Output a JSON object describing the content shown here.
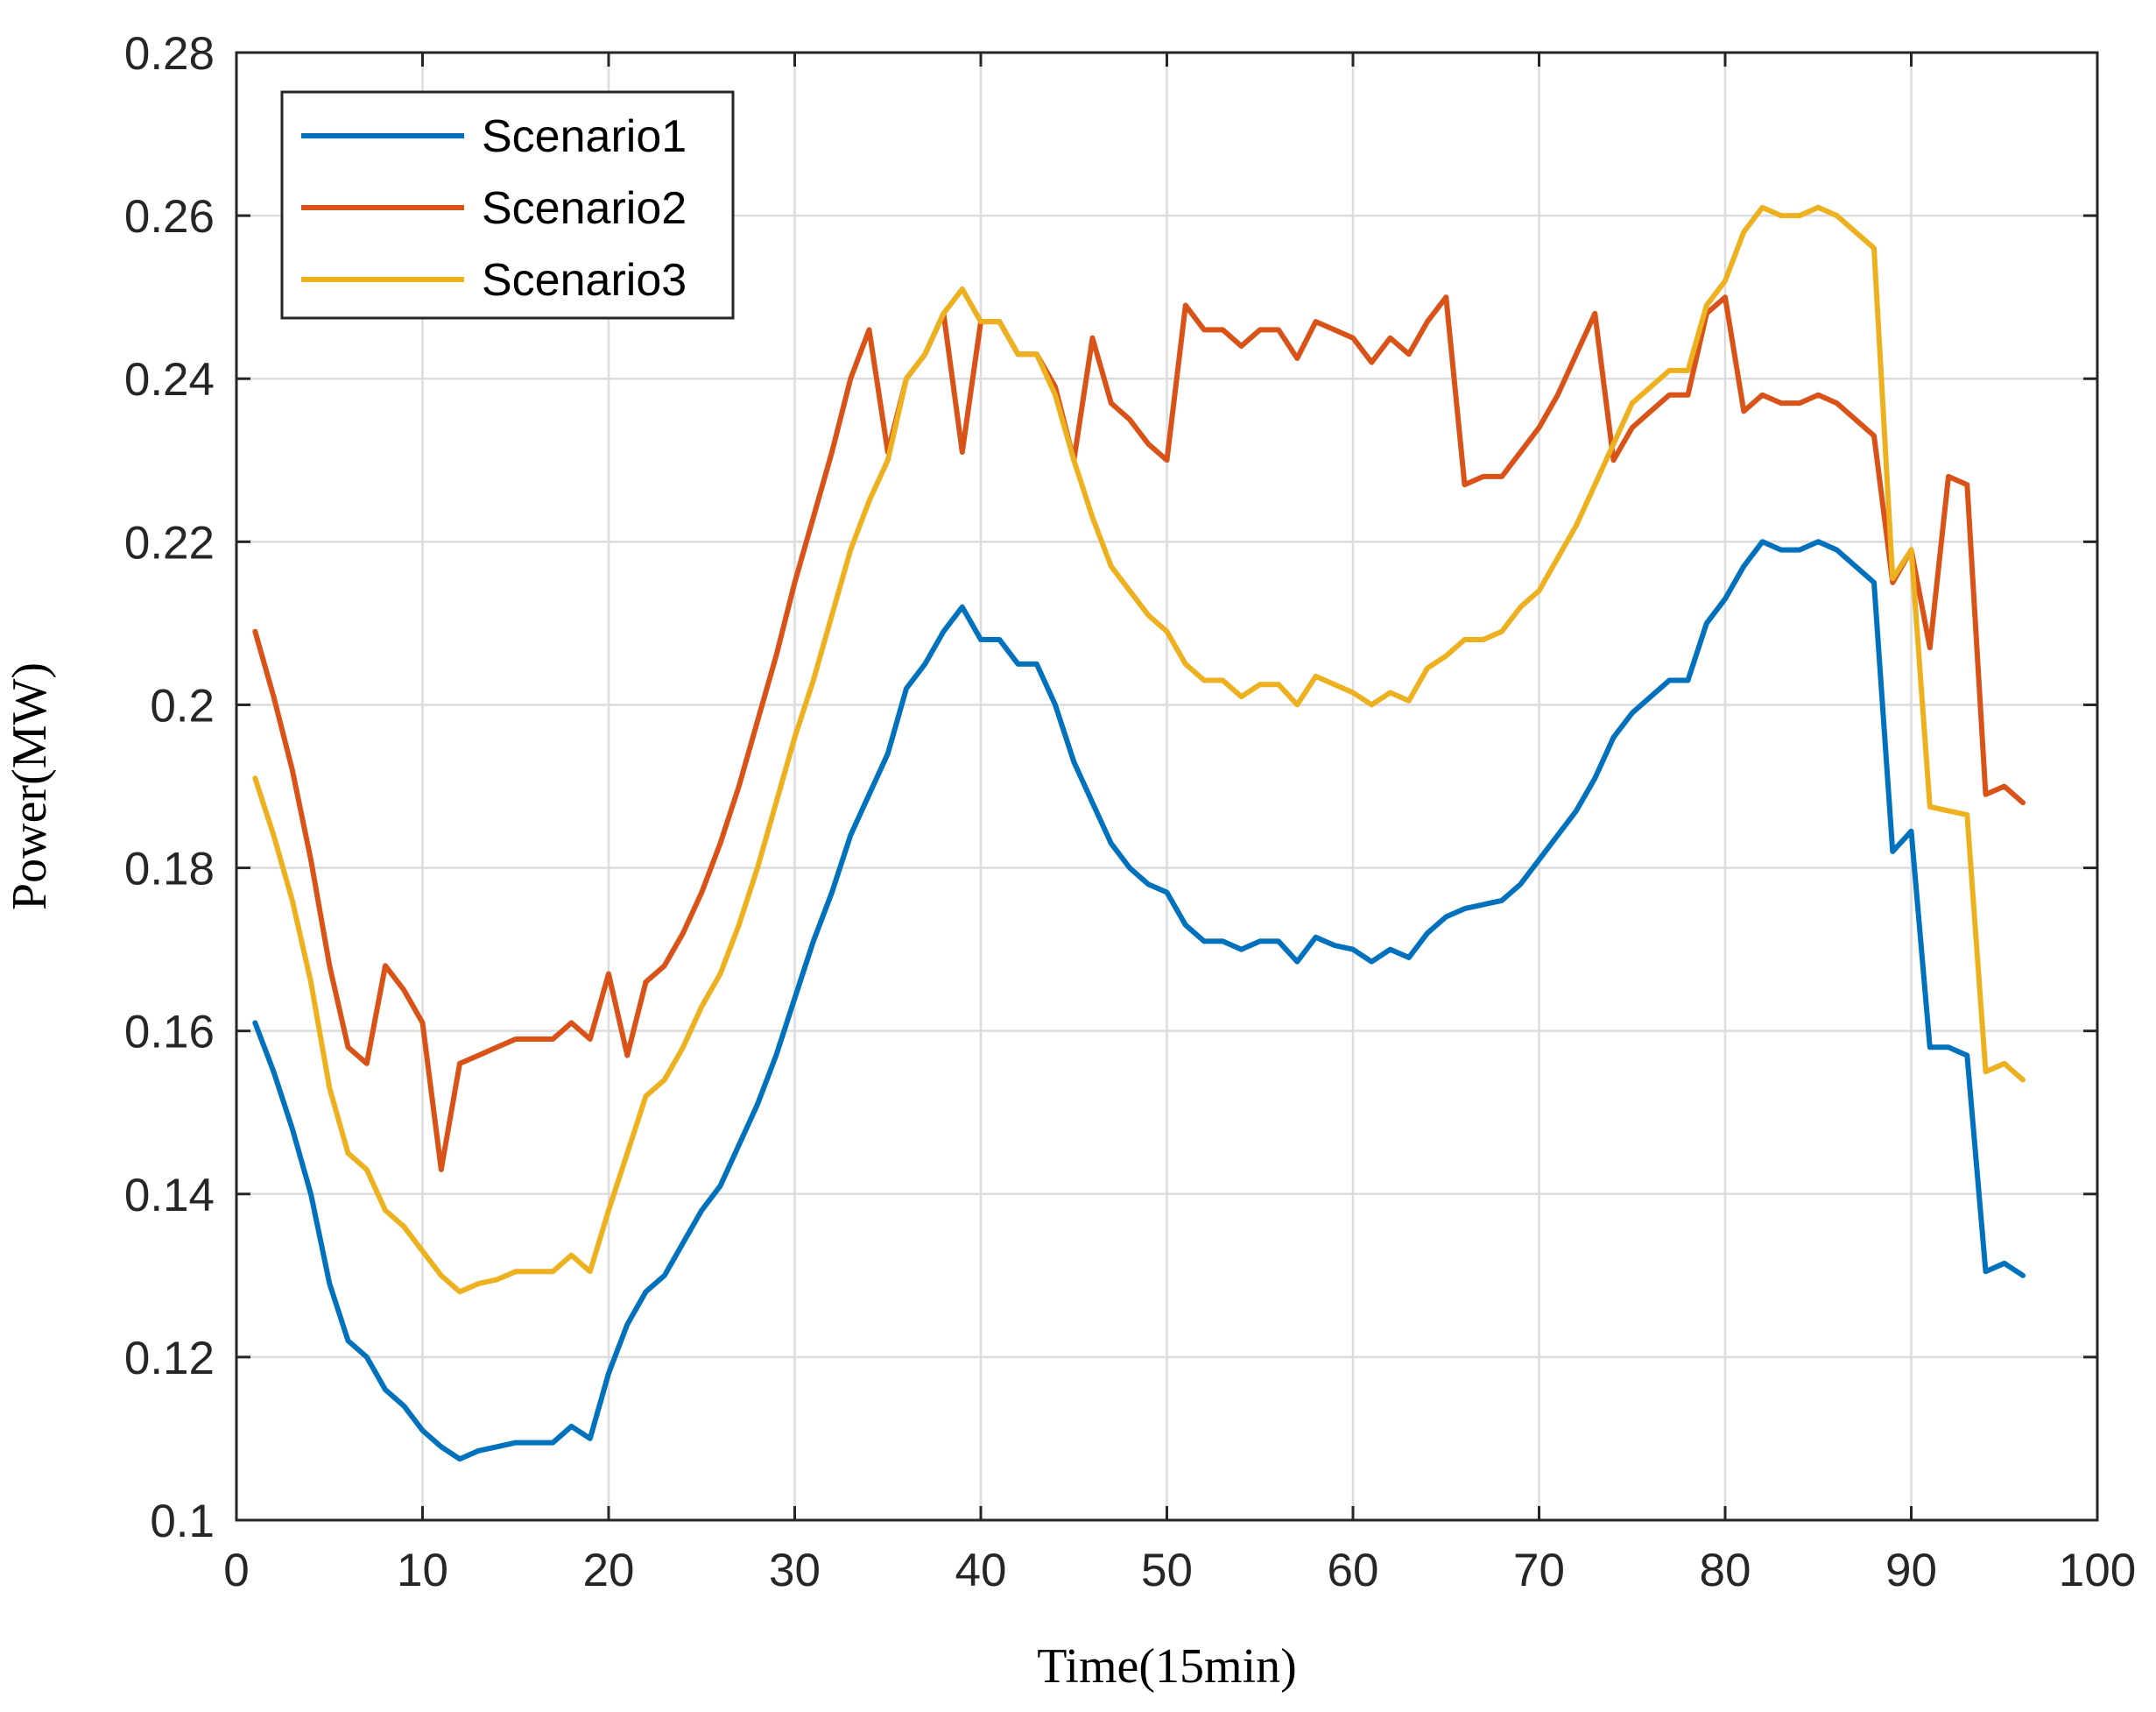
{
  "chart_data": {
    "type": "line",
    "title": "",
    "xlabel": "Time(15min)",
    "ylabel": "Power(MW)",
    "xlim": [
      0,
      100
    ],
    "ylim": [
      0.1,
      0.28
    ],
    "xticks": [
      "0",
      "10",
      "20",
      "30",
      "40",
      "50",
      "60",
      "70",
      "80",
      "90",
      "100"
    ],
    "yticks": [
      "0.1",
      "0.12",
      "0.14",
      "0.16",
      "0.18",
      "0.2",
      "0.22",
      "0.24",
      "0.26",
      "0.28"
    ],
    "grid": true,
    "legend_position": "top-left",
    "x": [
      1,
      2,
      3,
      4,
      5,
      6,
      7,
      8,
      9,
      10,
      11,
      12,
      13,
      14,
      15,
      16,
      17,
      18,
      19,
      20,
      21,
      22,
      23,
      24,
      25,
      26,
      27,
      28,
      29,
      30,
      31,
      32,
      33,
      34,
      35,
      36,
      37,
      38,
      39,
      40,
      41,
      42,
      43,
      44,
      45,
      46,
      47,
      48,
      49,
      50,
      51,
      52,
      53,
      54,
      55,
      56,
      57,
      58,
      59,
      60,
      61,
      62,
      63,
      64,
      65,
      66,
      67,
      68,
      69,
      70,
      71,
      72,
      73,
      74,
      75,
      76,
      77,
      78,
      79,
      80,
      81,
      82,
      83,
      84,
      85,
      86,
      87,
      88,
      89,
      90,
      91,
      92,
      93,
      94,
      95,
      96
    ],
    "series": [
      {
        "name": "Scenario1",
        "color": "#0072BD",
        "values": [
          0.161,
          0.155,
          0.148,
          0.14,
          0.129,
          0.122,
          0.12,
          0.116,
          0.114,
          0.111,
          0.109,
          0.1075,
          0.1085,
          0.109,
          0.1095,
          0.1095,
          0.1095,
          0.1115,
          0.11,
          0.118,
          0.124,
          0.128,
          0.13,
          0.134,
          0.138,
          0.141,
          0.146,
          0.151,
          0.157,
          0.164,
          0.171,
          0.177,
          0.184,
          0.189,
          0.194,
          0.202,
          0.205,
          0.209,
          0.212,
          0.208,
          0.208,
          0.205,
          0.205,
          0.2,
          0.193,
          0.188,
          0.183,
          0.18,
          0.178,
          0.177,
          0.173,
          0.171,
          0.171,
          0.17,
          0.171,
          0.171,
          0.1685,
          0.1715,
          0.1705,
          0.17,
          0.1685,
          0.17,
          0.169,
          0.172,
          0.174,
          0.175,
          0.1755,
          0.176,
          0.178,
          0.181,
          0.184,
          0.187,
          0.191,
          0.196,
          0.199,
          0.201,
          0.203,
          0.203,
          0.21,
          0.213,
          0.217,
          0.22,
          0.219,
          0.219,
          0.22,
          0.219,
          0.217,
          0.215,
          0.182,
          0.1845,
          0.158,
          0.158,
          0.157,
          0.1305,
          0.1315,
          0.13
        ]
      },
      {
        "name": "Scenario2",
        "color": "#D95319",
        "values": [
          0.209,
          0.201,
          0.192,
          0.181,
          0.168,
          0.158,
          0.156,
          0.168,
          0.165,
          0.161,
          0.143,
          0.156,
          0.157,
          0.158,
          0.159,
          0.159,
          0.159,
          0.161,
          0.159,
          0.167,
          0.157,
          0.166,
          0.168,
          0.172,
          0.177,
          0.183,
          0.19,
          0.198,
          0.206,
          0.215,
          0.223,
          0.231,
          0.24,
          0.246,
          0.231,
          0.24,
          0.243,
          0.248,
          0.231,
          0.247,
          0.247,
          0.243,
          0.243,
          0.239,
          0.23,
          0.245,
          0.237,
          0.235,
          0.232,
          0.23,
          0.249,
          0.246,
          0.246,
          0.244,
          0.246,
          0.246,
          0.2425,
          0.247,
          0.246,
          0.245,
          0.242,
          0.245,
          0.243,
          0.247,
          0.25,
          0.227,
          0.228,
          0.228,
          0.231,
          0.234,
          0.238,
          0.243,
          0.248,
          0.23,
          0.234,
          0.236,
          0.238,
          0.238,
          0.248,
          0.25,
          0.236,
          0.238,
          0.237,
          0.237,
          0.238,
          0.237,
          0.235,
          0.233,
          0.215,
          0.219,
          0.207,
          0.228,
          0.227,
          0.189,
          0.19,
          0.188
        ]
      },
      {
        "name": "Scenario3",
        "color": "#EDB120",
        "values": [
          0.191,
          0.184,
          0.176,
          0.166,
          0.153,
          0.145,
          0.143,
          0.138,
          0.136,
          0.133,
          0.13,
          0.128,
          0.129,
          0.1295,
          0.1305,
          0.1305,
          0.1305,
          0.1325,
          0.1305,
          0.138,
          0.145,
          0.152,
          0.154,
          0.158,
          0.163,
          0.167,
          0.173,
          0.18,
          0.188,
          0.196,
          0.203,
          0.211,
          0.219,
          0.225,
          0.23,
          0.24,
          0.243,
          0.248,
          0.251,
          0.247,
          0.247,
          0.243,
          0.243,
          0.238,
          0.23,
          0.223,
          0.217,
          0.214,
          0.211,
          0.209,
          0.205,
          0.203,
          0.203,
          0.201,
          0.2025,
          0.2025,
          0.2,
          0.2035,
          0.2025,
          0.2015,
          0.2,
          0.2015,
          0.2005,
          0.2045,
          0.206,
          0.208,
          0.208,
          0.209,
          0.212,
          0.214,
          0.218,
          0.222,
          0.227,
          0.232,
          0.237,
          0.239,
          0.241,
          0.241,
          0.249,
          0.252,
          0.258,
          0.261,
          0.26,
          0.26,
          0.261,
          0.26,
          0.258,
          0.256,
          0.2155,
          0.219,
          0.1875,
          0.187,
          0.1865,
          0.155,
          0.156,
          0.154
        ]
      }
    ]
  }
}
